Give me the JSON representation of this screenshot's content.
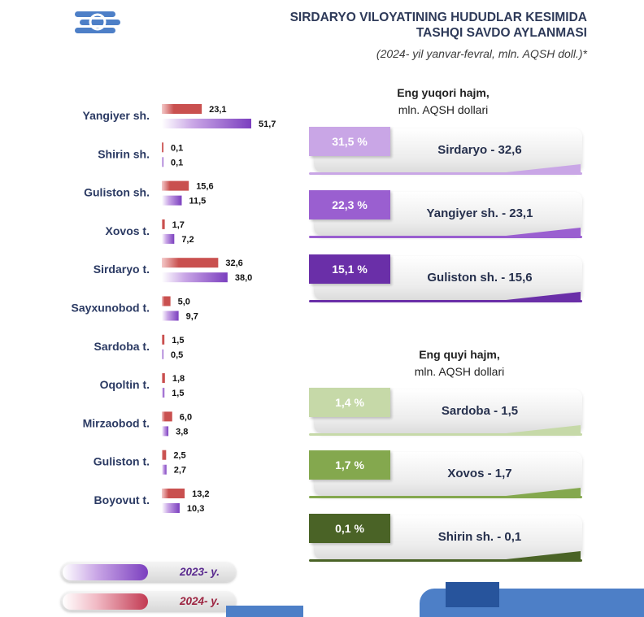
{
  "header": {
    "title_line1": "SIRDARYO VILOYATINING HUDUDLAR KESIMIDA",
    "title_line2": "TASHQI SAVDO AYLANMASI",
    "subtitle": "(2024- yil yanvar-fevral, mln. AQSH doll.)*"
  },
  "chart_data": {
    "type": "bar",
    "orientation": "horizontal",
    "categories": [
      "Yangiyer sh.",
      "Shirin sh.",
      "Guliston sh.",
      "Xovos t.",
      "Sirdaryo t.",
      "Sayxunobod t.",
      "Sardoba t.",
      "Oqoltin t.",
      "Mirzaobod t.",
      "Guliston t.",
      "Boyovut t."
    ],
    "series": [
      {
        "name": "2024- y.",
        "color": "#c9504f",
        "values": [
          23.1,
          0.1,
          15.6,
          1.7,
          32.6,
          5.0,
          1.5,
          1.8,
          6.0,
          2.5,
          13.2
        ],
        "labels": [
          "23,1",
          "0,1",
          "15,6",
          "1,7",
          "32,6",
          "5,0",
          "1,5",
          "1,8",
          "6,0",
          "2,5",
          "13,2"
        ]
      },
      {
        "name": "2023- y.",
        "color": "#7b3fbf",
        "values": [
          51.7,
          0.1,
          11.5,
          7.2,
          38.0,
          9.7,
          0.5,
          1.5,
          3.8,
          2.7,
          10.3
        ],
        "labels": [
          "51,7",
          "0,1",
          "11,5",
          "7,2",
          "38,0",
          "9,7",
          "0,5",
          "1,5",
          "3,8",
          "2,7",
          "10,3"
        ]
      }
    ]
  },
  "top_panel": {
    "heading": "Eng yuqori hajm,",
    "unit": "mln. AQSH dollari",
    "items": [
      {
        "percent": "31,5 %",
        "text": "Sirdaryo - 32,6",
        "color": "#c9a6e6"
      },
      {
        "percent": "22,3 %",
        "text": "Yangiyer sh. - 23,1",
        "color": "#9a5fd0"
      },
      {
        "percent": "15,1 %",
        "text": "Guliston sh. - 15,6",
        "color": "#6a2fa8"
      }
    ]
  },
  "bottom_panel": {
    "heading": "Eng quyi hajm,",
    "unit": "mln. AQSH dollari",
    "items": [
      {
        "percent": "1,4 %",
        "text": "Sardoba -  1,5",
        "color": "#c6d9a8"
      },
      {
        "percent": "1,7 %",
        "text": "Xovos - 1,7",
        "color": "#84a84e"
      },
      {
        "percent": "0,1 %",
        "text": "Shirin sh. - 0,1",
        "color": "#4a6326"
      }
    ]
  },
  "legend": [
    {
      "label": "2023- y.",
      "color": "#7b3fbf"
    },
    {
      "label": "2024- y.",
      "color": "#c23a52"
    }
  ]
}
